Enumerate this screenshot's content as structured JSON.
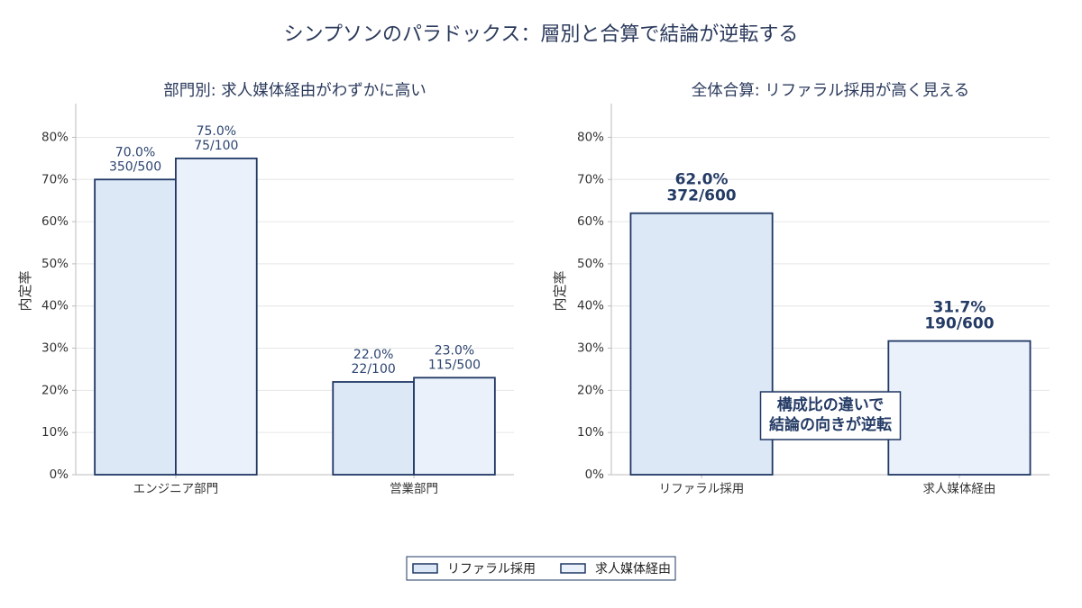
{
  "figure": {
    "title": "シンプソンのパラドックス：層別と合算で結論が逆転する",
    "legend_placement": "bottom-center"
  },
  "colors": {
    "bar_edge": "#1f3763",
    "title_text": "#2b3a5c",
    "axis_spine": "#bbbbbb",
    "grid": "#e6e6e6"
  },
  "chart_data": [
    {
      "type": "bar",
      "title": "部門別: 求人媒体経由がわずかに高い",
      "ylabel": "内定率",
      "categories": [
        "エンジニア部門",
        "営業部門"
      ],
      "series": [
        {
          "name": "リファラル採用",
          "color": "#dce8f6",
          "values": [
            70.0,
            22.0
          ],
          "value_labels": [
            "70.0%",
            "22.0%"
          ],
          "count_labels": [
            "350/500",
            "22/100"
          ]
        },
        {
          "name": "求人媒体経由",
          "color": "#eaf1fb",
          "values": [
            75.0,
            23.0
          ],
          "value_labels": [
            "75.0%",
            "23.0%"
          ],
          "count_labels": [
            "75/100",
            "115/500"
          ]
        }
      ],
      "ylim": [
        0,
        88
      ],
      "yticks": [
        0,
        10,
        20,
        30,
        40,
        50,
        60,
        70,
        80
      ],
      "ytick_labels": [
        "0%",
        "10%",
        "20%",
        "30%",
        "40%",
        "50%",
        "60%",
        "70%",
        "80%"
      ],
      "grid": "horizontal"
    },
    {
      "type": "bar",
      "title": "全体合算: リファラル採用が高く見える",
      "ylabel": "内定率",
      "categories": [
        "リファラル採用",
        "求人媒体経由"
      ],
      "values": [
        62.0,
        31.7
      ],
      "colors": [
        "#dce8f6",
        "#eaf1fb"
      ],
      "value_labels": [
        "62.0%",
        "31.7%"
      ],
      "count_labels": [
        "372/600",
        "190/600"
      ],
      "annotation": [
        "構成比の違いで",
        "結論の向きが逆転"
      ],
      "ylim": [
        0,
        88
      ],
      "yticks": [
        0,
        10,
        20,
        30,
        40,
        50,
        60,
        70,
        80
      ],
      "ytick_labels": [
        "0%",
        "10%",
        "20%",
        "30%",
        "40%",
        "50%",
        "60%",
        "70%",
        "80%"
      ],
      "grid": "horizontal"
    }
  ]
}
